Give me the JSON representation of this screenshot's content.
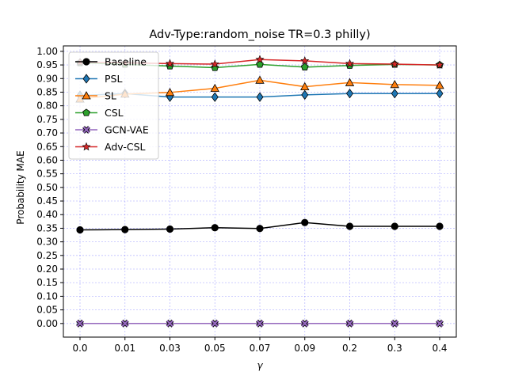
{
  "chart_data": {
    "type": "line",
    "title": "Adv-Type:random_noise TR=0.3 philly)",
    "xlabel": "γ",
    "ylabel": "Probability MAE",
    "categories": [
      "0.0",
      "0.01",
      "0.03",
      "0.05",
      "0.07",
      "0.09",
      "0.2",
      "0.3",
      "0.4"
    ],
    "ylim": [
      -0.05,
      1.02
    ],
    "yticks": [
      "0.00",
      "0.05",
      "0.10",
      "0.15",
      "0.20",
      "0.25",
      "0.30",
      "0.35",
      "0.40",
      "0.45",
      "0.50",
      "0.55",
      "0.60",
      "0.65",
      "0.70",
      "0.75",
      "0.80",
      "0.85",
      "0.90",
      "0.95",
      "1.00"
    ],
    "grid": true,
    "grid_color": "#0000ff",
    "legend_position": "upper-left",
    "series": [
      {
        "name": "Baseline",
        "color": "#000000",
        "marker": "circle",
        "values": [
          0.344,
          0.345,
          0.347,
          0.352,
          0.349,
          0.371,
          0.357,
          0.357,
          0.357
        ]
      },
      {
        "name": "PSL",
        "color": "#1f77b4",
        "marker": "diamond",
        "values": [
          0.838,
          0.845,
          0.832,
          0.832,
          0.832,
          0.84,
          0.845,
          0.845,
          0.845
        ]
      },
      {
        "name": "SL",
        "color": "#ff7f0e",
        "marker": "triangle",
        "values": [
          0.825,
          0.843,
          0.849,
          0.864,
          0.894,
          0.87,
          0.885,
          0.878,
          0.875
        ]
      },
      {
        "name": "CSL",
        "color": "#2ca02c",
        "marker": "pentagon",
        "values": [
          0.958,
          0.952,
          0.946,
          0.94,
          0.952,
          0.942,
          0.948,
          0.952,
          0.95
        ]
      },
      {
        "name": "GCN-VAE",
        "color": "#9467bd",
        "marker": "x",
        "values": [
          0.0,
          0.0,
          0.0,
          0.0,
          0.0,
          0.0,
          0.0,
          0.0,
          0.0
        ]
      },
      {
        "name": "Adv-CSL",
        "color": "#d62728",
        "marker": "star",
        "values": [
          0.96,
          0.958,
          0.955,
          0.953,
          0.97,
          0.965,
          0.955,
          0.953,
          0.95
        ]
      }
    ]
  }
}
